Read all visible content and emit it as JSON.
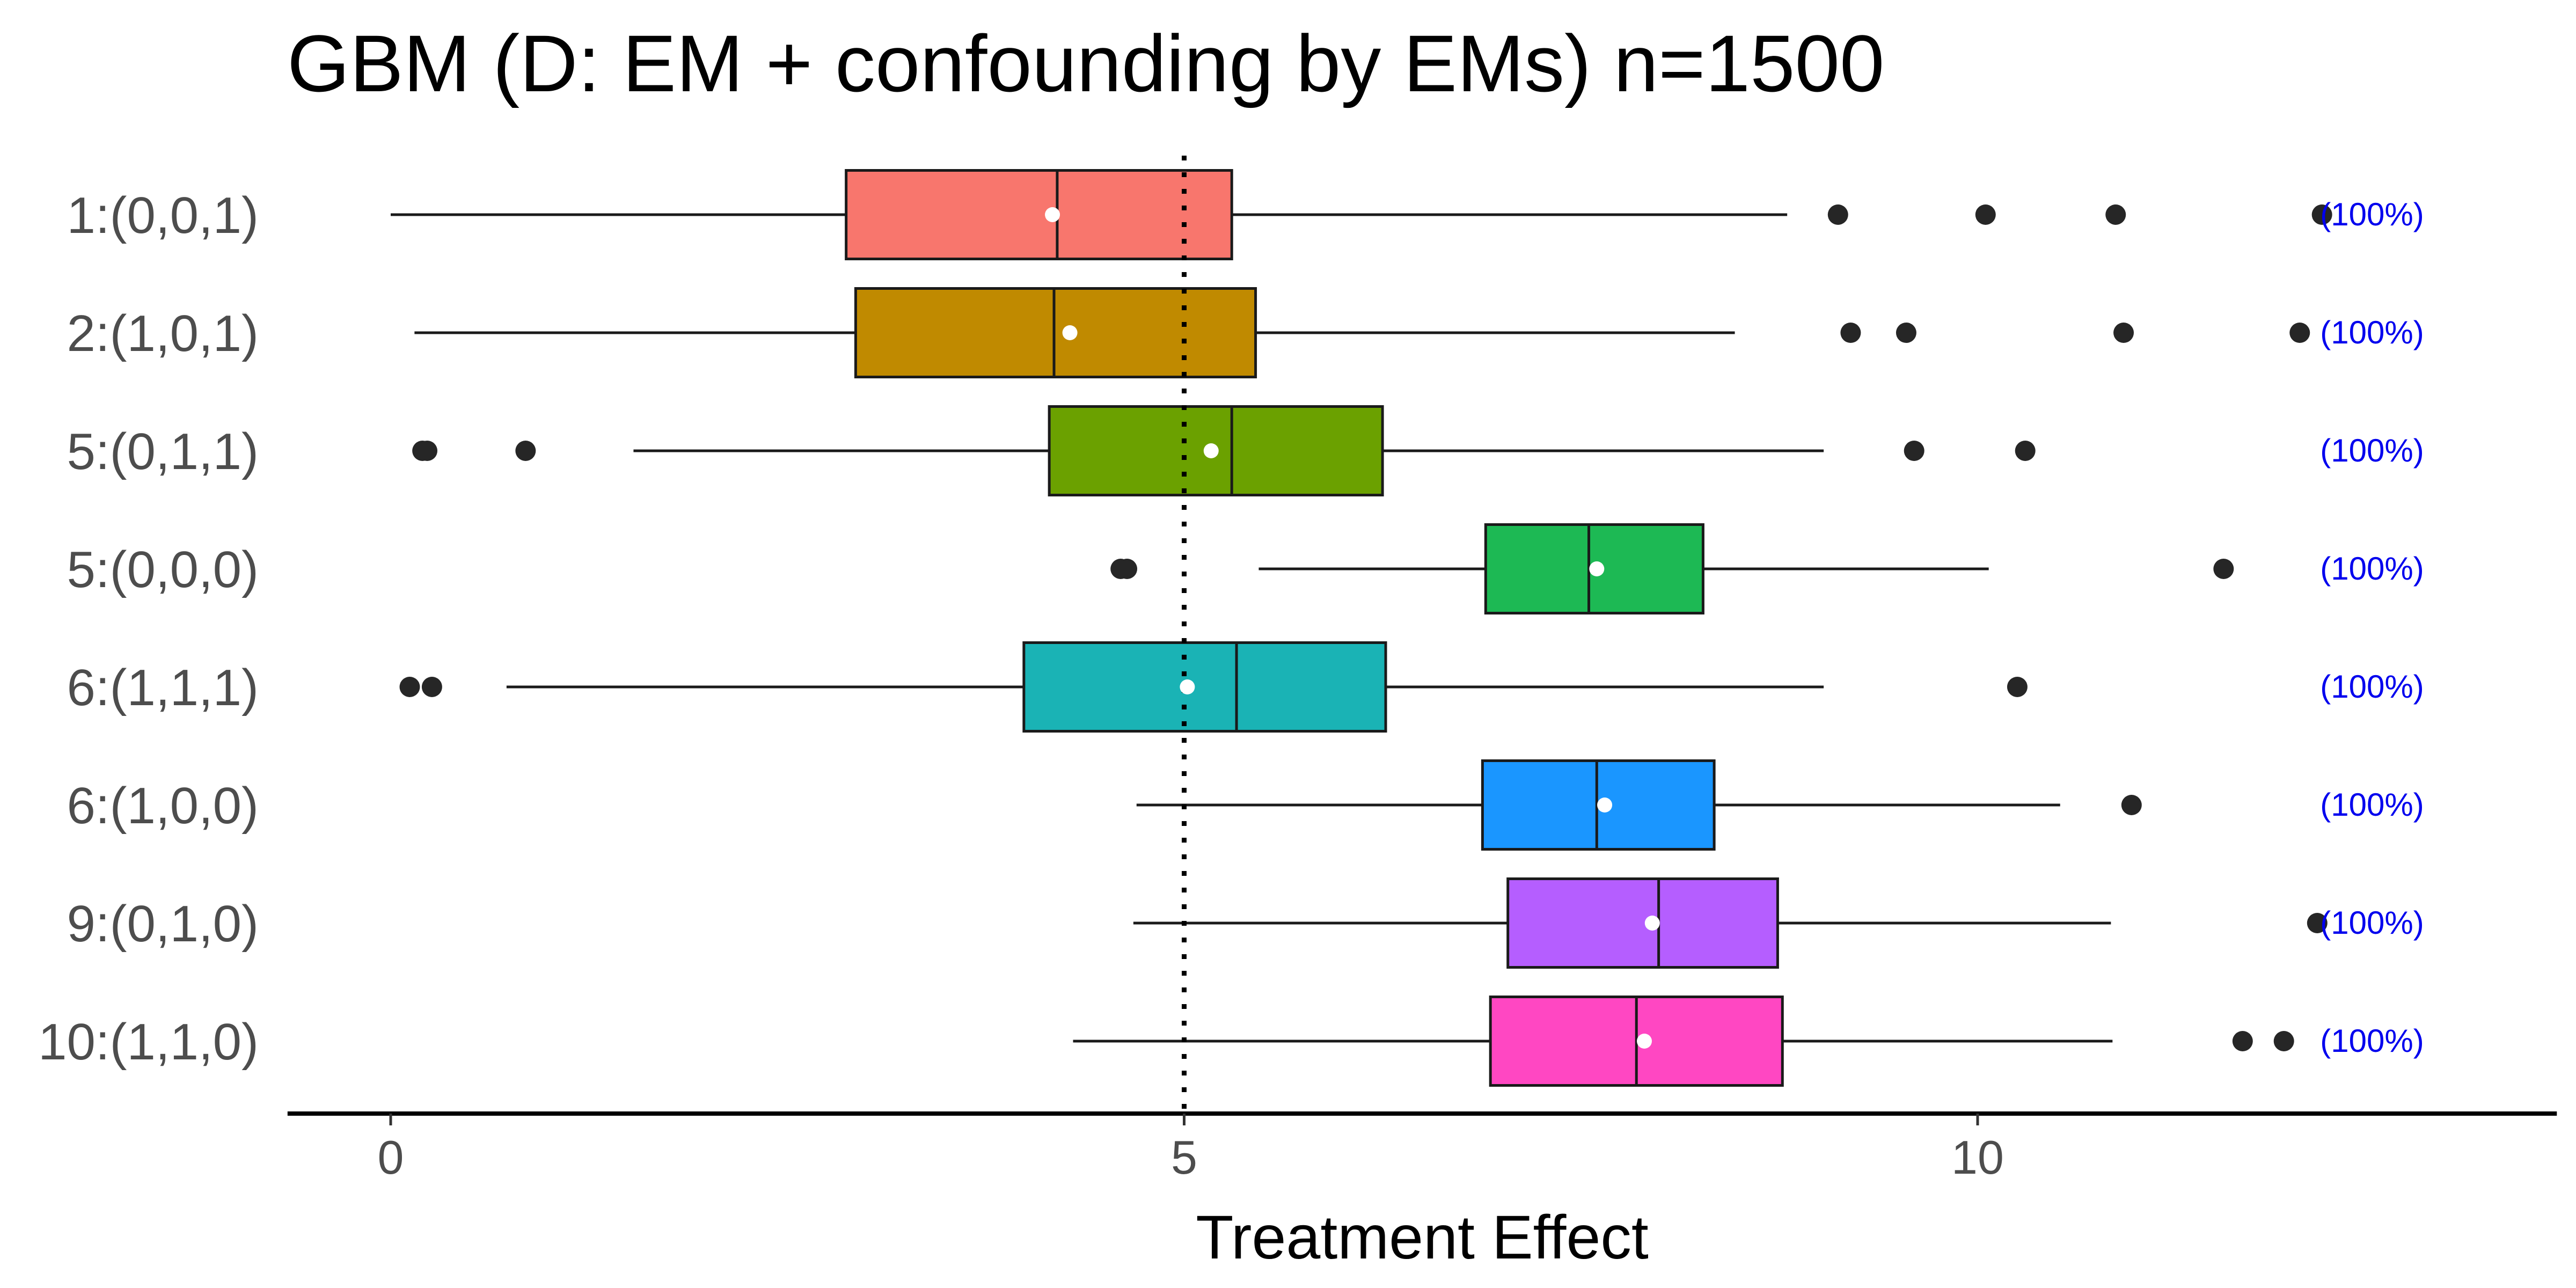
{
  "chart_data": {
    "type": "boxplot",
    "orientation": "horizontal",
    "title": "GBM (D: EM + confounding by EMs) n=1500",
    "xlabel": "Treatment Effect",
    "ylabel": "",
    "xlim": [
      -0.65,
      13.65
    ],
    "xticks": [
      0,
      5,
      10
    ],
    "reference_line": {
      "x": 5,
      "style": "dotted",
      "color": "#000000"
    },
    "grid": false,
    "legend": "none",
    "annotation_color": "#0000ee",
    "whisker_color": "#1a1a1a",
    "outlier_color": "#262626",
    "mean_marker_color": "#ffffff",
    "groups": [
      {
        "label": "1:(0,0,1)",
        "color": "#F8766D",
        "whisker_low": 0.0,
        "q1": 2.87,
        "median": 4.2,
        "q3": 5.3,
        "whisker_high": 8.8,
        "mean": 4.17,
        "outliers": [
          9.12,
          10.05,
          10.87,
          12.17
        ],
        "annotation": "(100%)"
      },
      {
        "label": "2:(1,0,1)",
        "color": "#C08A00",
        "whisker_low": 0.15,
        "q1": 2.93,
        "median": 4.18,
        "q3": 5.45,
        "whisker_high": 8.47,
        "mean": 4.28,
        "outliers": [
          9.2,
          9.55,
          10.92,
          12.03
        ],
        "annotation": "(100%)"
      },
      {
        "label": "5:(0,1,1)",
        "color": "#6BA100",
        "whisker_low": 1.53,
        "q1": 4.15,
        "median": 5.3,
        "q3": 6.25,
        "whisker_high": 9.03,
        "mean": 5.17,
        "outliers": [
          0.2,
          0.23,
          0.85,
          9.6,
          10.3
        ],
        "annotation": "(100%)"
      },
      {
        "label": "5:(0,0,0)",
        "color": "#1DB954",
        "whisker_low": 5.47,
        "q1": 6.9,
        "median": 7.55,
        "q3": 8.27,
        "whisker_high": 10.07,
        "mean": 7.6,
        "outliers": [
          4.6,
          4.64,
          11.55
        ],
        "annotation": "(100%)"
      },
      {
        "label": "6:(1,1,1)",
        "color": "#1AB3B5",
        "whisker_low": 0.73,
        "q1": 3.99,
        "median": 5.33,
        "q3": 6.27,
        "whisker_high": 9.03,
        "mean": 5.02,
        "outliers": [
          0.12,
          0.26,
          10.25
        ],
        "annotation": "(100%)"
      },
      {
        "label": "6:(1,0,0)",
        "color": "#1A96FF",
        "whisker_low": 4.7,
        "q1": 6.88,
        "median": 7.6,
        "q3": 8.34,
        "whisker_high": 10.52,
        "mean": 7.65,
        "outliers": [
          10.97
        ],
        "annotation": "(100%)"
      },
      {
        "label": "9:(0,1,0)",
        "color": "#B55EFF",
        "whisker_low": 4.68,
        "q1": 7.04,
        "median": 7.99,
        "q3": 8.74,
        "whisker_high": 10.84,
        "mean": 7.95,
        "outliers": [
          12.14
        ],
        "annotation": "(100%)"
      },
      {
        "label": "10:(1,1,0)",
        "color": "#FF47C2",
        "whisker_low": 4.3,
        "q1": 6.93,
        "median": 7.85,
        "q3": 8.77,
        "whisker_high": 10.85,
        "mean": 7.9,
        "outliers": [
          11.67,
          11.93
        ],
        "annotation": "(100%)"
      }
    ]
  }
}
